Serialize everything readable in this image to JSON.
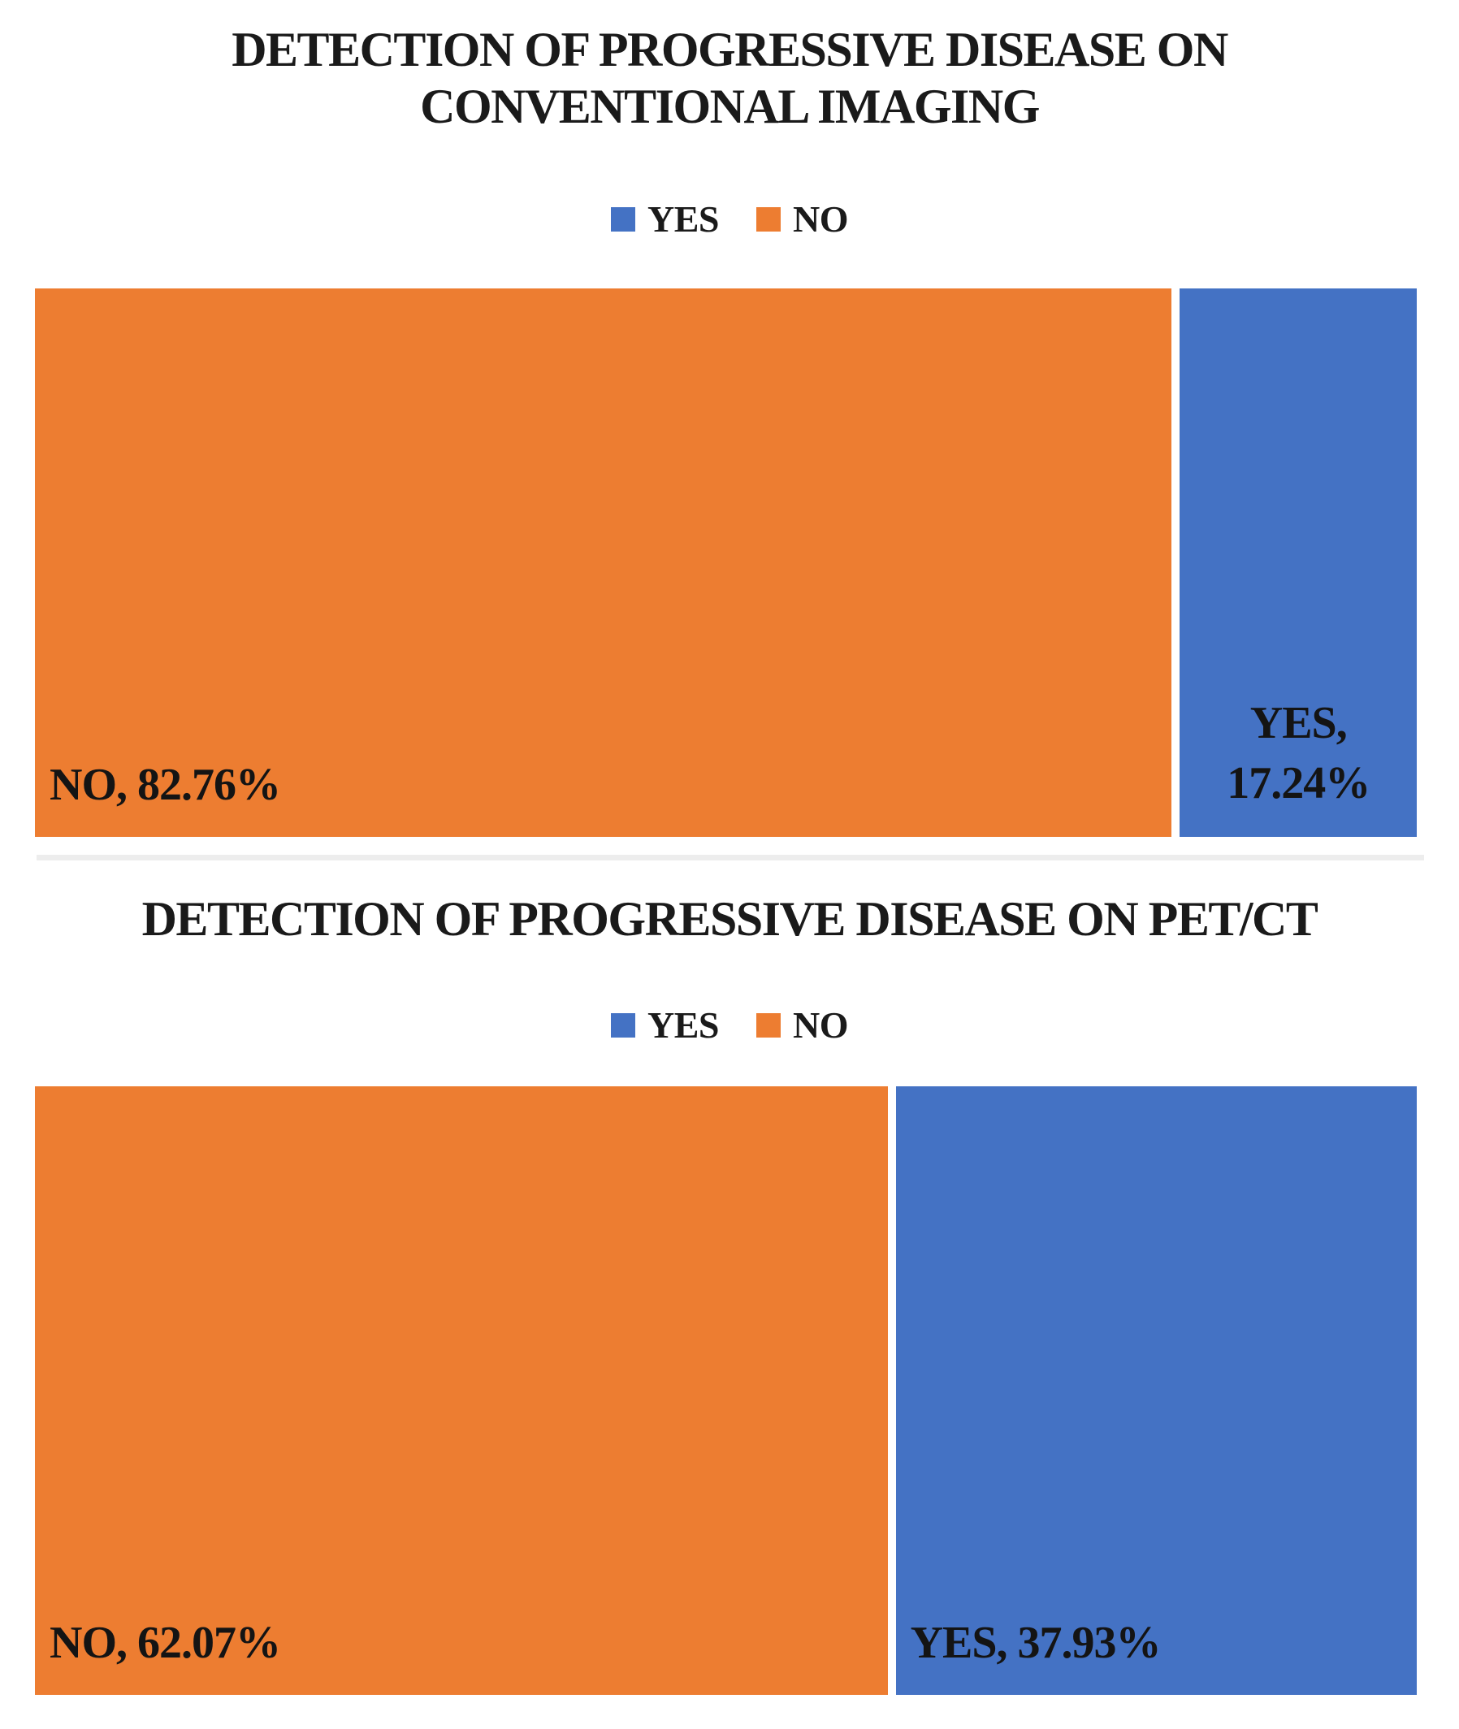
{
  "figure": {
    "background": "#FFFFFF",
    "divider_color": "#EDEDED",
    "text_color": "#1A1A1A"
  },
  "chart_data": [
    {
      "type": "bar",
      "subtype": "100pct-stacked-horizontal",
      "title": "DETECTION OF PROGRESSIVE DISEASE ON CONVENTIONAL IMAGING",
      "title_lines": [
        "DETECTION OF PROGRESSIVE DISEASE ON",
        "CONVENTIONAL IMAGING"
      ],
      "legend_position": "top",
      "legend_labels": [
        "YES",
        "NO"
      ],
      "axes_visible": false,
      "xlim": [
        0,
        100
      ],
      "series": [
        {
          "name": "YES",
          "value": 17.24,
          "color": "#4472C4",
          "label": "YES, 17.24%",
          "label_lines": [
            "YES,",
            "17.24%"
          ]
        },
        {
          "name": "NO",
          "value": 82.76,
          "color": "#ED7D31",
          "label": "NO, 82.76%"
        }
      ]
    },
    {
      "type": "bar",
      "subtype": "100pct-stacked-horizontal",
      "title": "DETECTION OF PROGRESSIVE DISEASE ON PET/CT",
      "title_lines": [
        "DETECTION OF PROGRESSIVE DISEASE ON PET/CT"
      ],
      "legend_position": "top",
      "legend_labels": [
        "YES",
        "NO"
      ],
      "axes_visible": false,
      "xlim": [
        0,
        100
      ],
      "series": [
        {
          "name": "YES",
          "value": 37.93,
          "color": "#4472C4",
          "label": "YES, 37.93%"
        },
        {
          "name": "NO",
          "value": 62.07,
          "color": "#ED7D31",
          "label": "NO, 62.07%"
        }
      ]
    }
  ]
}
